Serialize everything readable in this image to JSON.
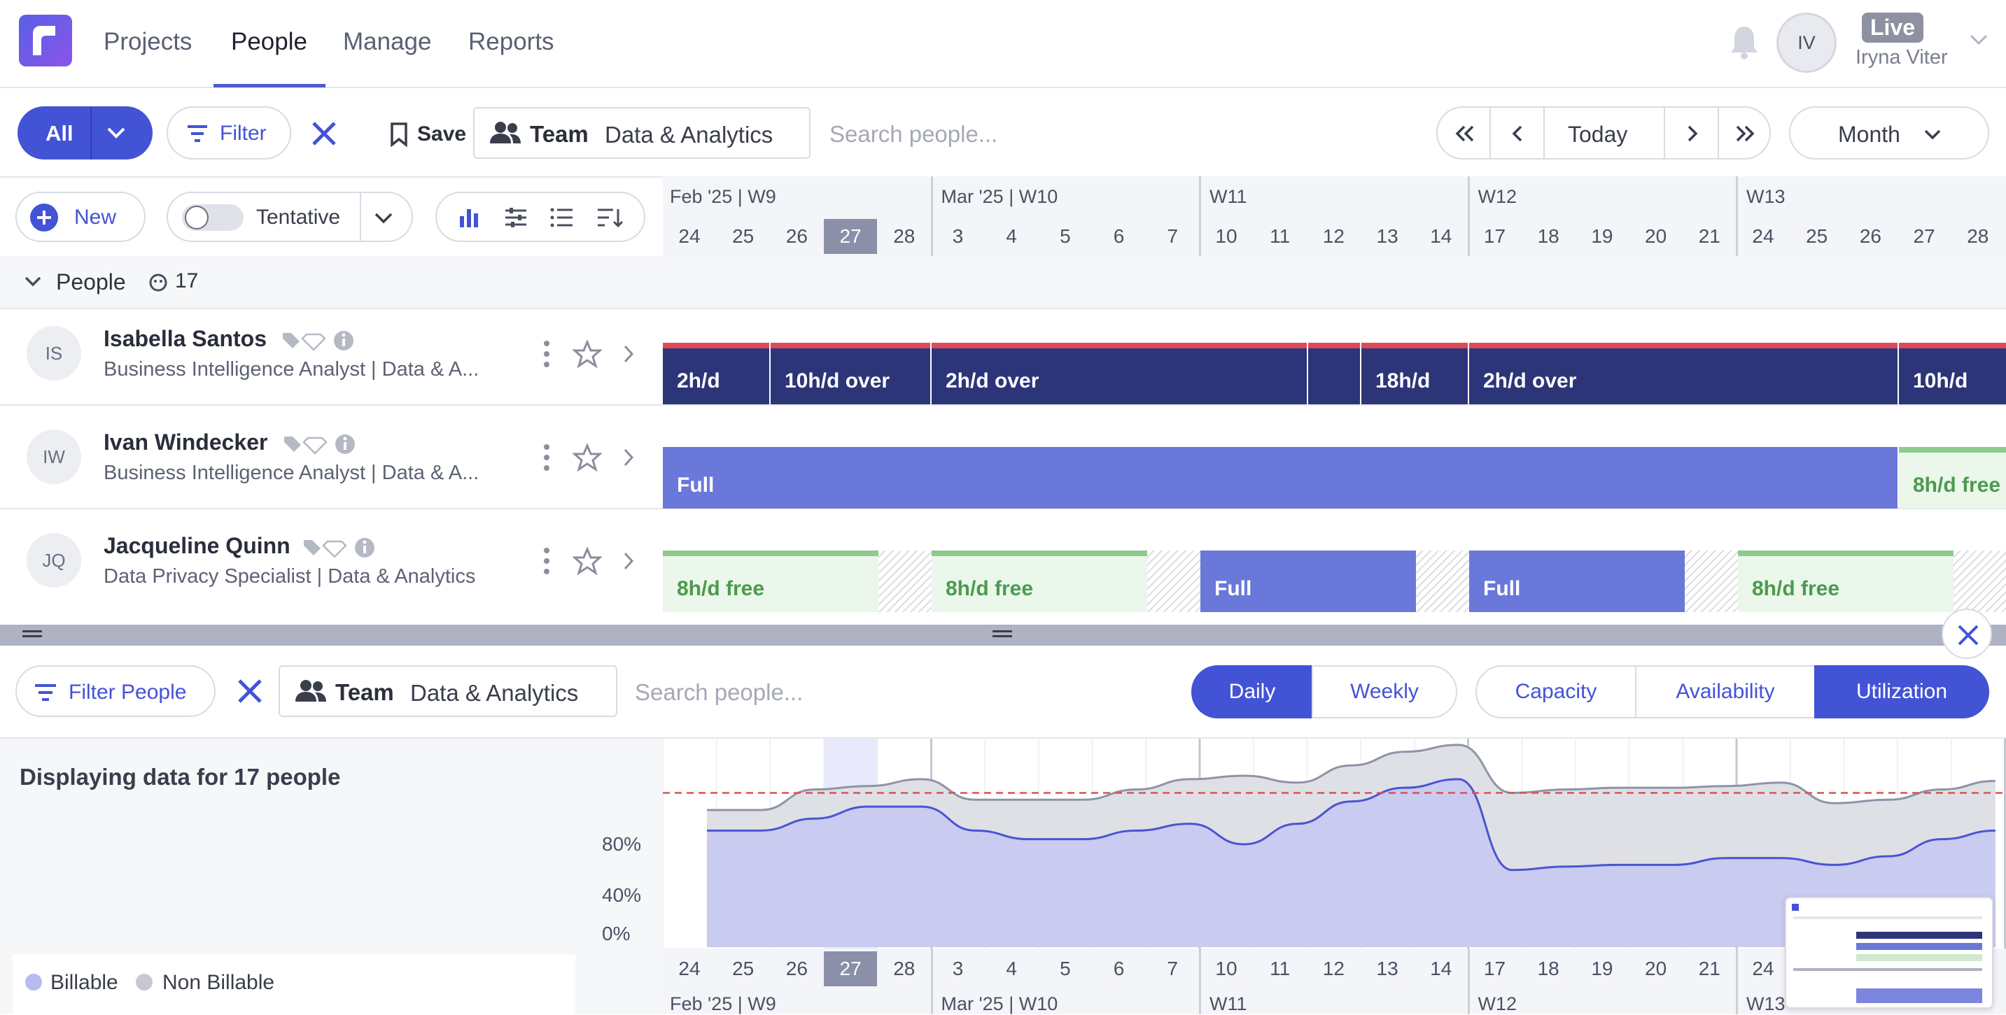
{
  "nav": {
    "items": [
      "Projects",
      "People",
      "Manage",
      "Reports"
    ],
    "active": "People",
    "user": {
      "initials": "IV",
      "name": "Iryna Viter",
      "badge": "Live"
    }
  },
  "toolbar": {
    "all_label": "All",
    "filter_label": "Filter",
    "save_label": "Save",
    "team_label": "Team",
    "team_value": "Data & Analytics",
    "search_placeholder": "Search people...",
    "today_label": "Today",
    "view_label": "Month"
  },
  "toolbar2": {
    "new_label": "New",
    "tentative_label": "Tentative"
  },
  "timeline": {
    "weeks": [
      "Feb '25 | W9",
      "Mar '25 | W10",
      "W11",
      "W12",
      "W13"
    ],
    "days": [
      "24",
      "25",
      "26",
      "27",
      "28",
      "3",
      "4",
      "5",
      "6",
      "7",
      "10",
      "11",
      "12",
      "13",
      "14",
      "17",
      "18",
      "19",
      "20",
      "21",
      "24",
      "25",
      "26",
      "27",
      "28"
    ],
    "today_day": "27"
  },
  "people_group": {
    "label": "People",
    "count": "17"
  },
  "people": [
    {
      "initials": "IS",
      "name": "Isabella Santos",
      "role": "Business Intelligence Analyst | Data & A...",
      "bars": [
        "2h/d",
        "10h/d over",
        "2h/d over",
        "",
        "18h/d",
        "2h/d over",
        "10h/d"
      ]
    },
    {
      "initials": "IW",
      "name": "Ivan Windecker",
      "role": "Business Intelligence Analyst | Data & A...",
      "bars": [
        "Full",
        "8h/d free"
      ]
    },
    {
      "initials": "JQ",
      "name": "Jacqueline Quinn",
      "role": "Data Privacy Specialist | Data & Analytics",
      "bars": [
        "8h/d free",
        "8h/d free",
        "Full",
        "Full",
        "8h/d free"
      ]
    }
  ],
  "bottom": {
    "filter_people_label": "Filter People",
    "team_label": "Team",
    "team_value": "Data & Analytics",
    "search_placeholder": "Search people...",
    "period_tabs": [
      "Daily",
      "Weekly"
    ],
    "period_active": "Daily",
    "metric_tabs": [
      "Capacity",
      "Availability",
      "Utilization"
    ],
    "metric_active": "Utilization",
    "summary": "Displaying data for 17 people",
    "legend": [
      "Billable",
      "Non Billable"
    ]
  },
  "chart_data": {
    "type": "area",
    "categories": [
      "24",
      "25",
      "26",
      "27",
      "28",
      "3",
      "4",
      "5",
      "6",
      "7",
      "10",
      "11",
      "12",
      "13",
      "14",
      "17",
      "18",
      "19",
      "20",
      "21",
      "24",
      "25",
      "26",
      "27",
      "28"
    ],
    "series": [
      {
        "name": "Billable",
        "values": [
          68,
          68,
          75,
          82,
          82,
          68,
          63,
          63,
          68,
          72,
          60,
          72,
          85,
          93,
          98,
          45,
          47,
          48,
          48,
          52,
          52,
          48,
          53,
          63,
          68
        ]
      },
      {
        "name": "Non Billable",
        "values": [
          80,
          80,
          92,
          94,
          98,
          86,
          86,
          86,
          92,
          98,
          100,
          96,
          106,
          114,
          118,
          90,
          92,
          93,
          93,
          94,
          96,
          84,
          86,
          92,
          97
        ]
      }
    ],
    "yticks": [
      "80%",
      "40%",
      "0%"
    ],
    "ylim": [
      0,
      120
    ],
    "threshold": 90,
    "colors": {
      "billable": "#4a55d1",
      "non_billable": "#8f93a6",
      "threshold": "#d9534f"
    }
  }
}
